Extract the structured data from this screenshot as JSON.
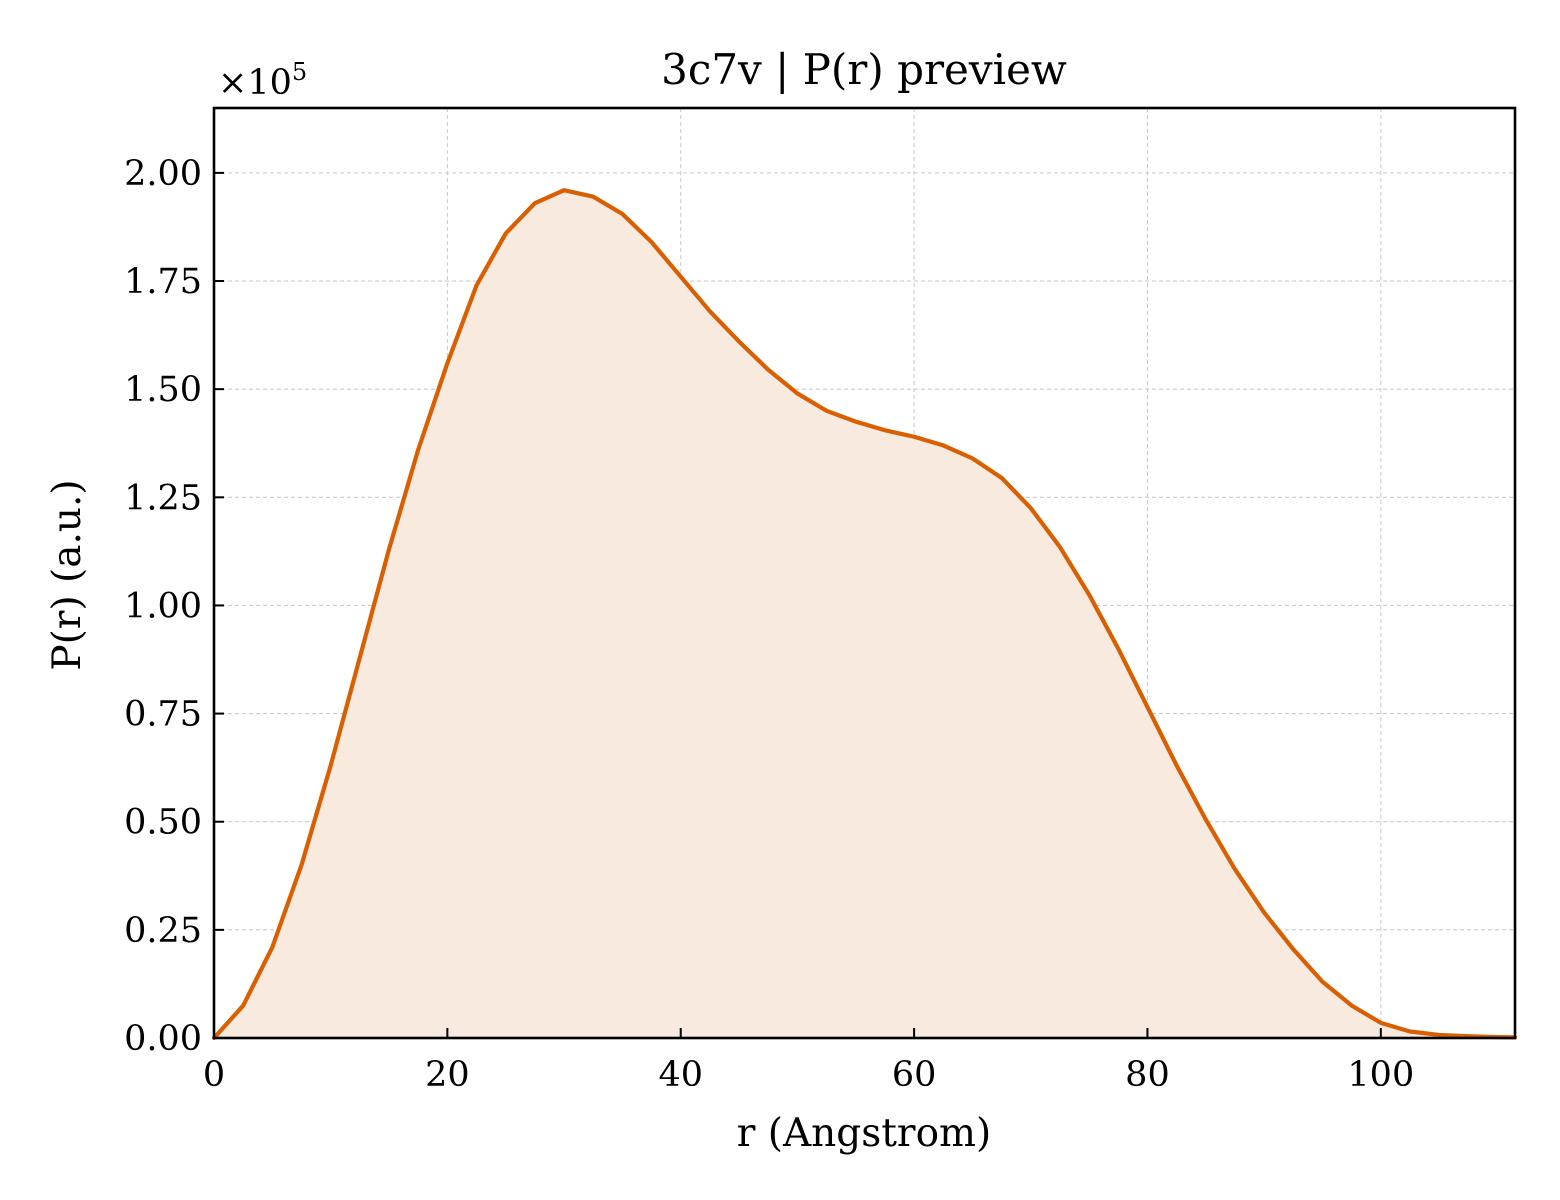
{
  "chart_data": {
    "type": "area",
    "title": "3c7v | P(r) preview",
    "xlabel": "r (Angstrom)",
    "ylabel": "P(r) (a.u.)",
    "y_offset_text": "×10",
    "y_offset_exponent": "5",
    "xlim": [
      0,
      111.5
    ],
    "ylim": [
      0,
      2.15
    ],
    "x_ticks": [
      0,
      20,
      40,
      60,
      80,
      100
    ],
    "x_tick_labels": [
      "0",
      "20",
      "40",
      "60",
      "80",
      "100"
    ],
    "y_ticks": [
      0,
      0.25,
      0.5,
      0.75,
      1.0,
      1.25,
      1.5,
      1.75,
      2.0
    ],
    "y_tick_labels": [
      "0.00",
      "0.25",
      "0.50",
      "0.75",
      "1.00",
      "1.25",
      "1.50",
      "1.75",
      "2.00"
    ],
    "grid": true,
    "legend": "none",
    "series": [
      {
        "line_color": "#d95f02",
        "fill_color": "#f9eadf",
        "x": [
          0,
          2.5,
          5,
          7.5,
          10,
          12.5,
          15,
          17.5,
          20,
          22.5,
          25,
          27.5,
          30,
          32.5,
          35,
          37.5,
          40,
          42.5,
          45,
          47.5,
          50,
          52.5,
          55,
          57.5,
          60,
          62.5,
          65,
          67.5,
          70,
          72.5,
          75,
          77.5,
          80,
          82.5,
          85,
          87.5,
          90,
          92.5,
          95,
          97.5,
          100,
          102.5,
          105,
          107.5,
          110,
          111.5
        ],
        "y": [
          0.0,
          0.075,
          0.21,
          0.4,
          0.63,
          0.88,
          1.13,
          1.36,
          1.56,
          1.74,
          1.86,
          1.93,
          1.96,
          1.945,
          1.905,
          1.84,
          1.76,
          1.68,
          1.61,
          1.545,
          1.49,
          1.45,
          1.425,
          1.405,
          1.39,
          1.37,
          1.34,
          1.295,
          1.225,
          1.135,
          1.025,
          0.9,
          0.765,
          0.63,
          0.505,
          0.39,
          0.29,
          0.205,
          0.13,
          0.075,
          0.035,
          0.015,
          0.007,
          0.004,
          0.002,
          0.0015
        ]
      }
    ]
  }
}
